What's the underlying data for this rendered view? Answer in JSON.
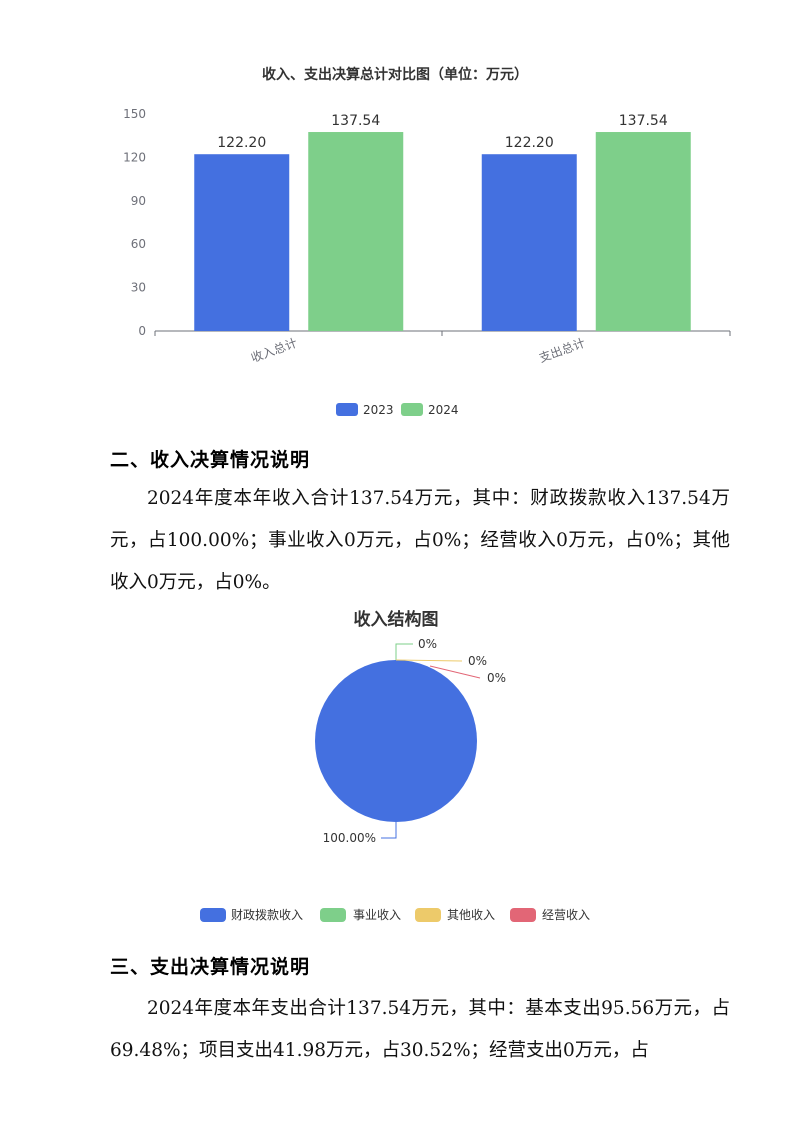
{
  "chart_data": [
    {
      "type": "bar",
      "title": "收入、支出决算总计对比图（单位：万元）",
      "categories": [
        "收入总计",
        "支出总计"
      ],
      "series": [
        {
          "name": "2023",
          "values": [
            122.2,
            122.2
          ],
          "color": "#4470E0"
        },
        {
          "name": "2024",
          "values": [
            137.54,
            137.54
          ],
          "color": "#7ECF8A"
        }
      ],
      "data_labels": [
        [
          "122.20",
          "122.20"
        ],
        [
          "137.54",
          "137.54"
        ]
      ],
      "yticks": [
        "0",
        "30",
        "60",
        "90",
        "120",
        "150"
      ],
      "ylim": [
        0,
        150
      ],
      "legend_position": "bottom",
      "grid": false
    },
    {
      "type": "pie",
      "title": "收入结构图",
      "slices": [
        {
          "name": "财政拨款收入",
          "value": 100.0,
          "label": "100.00%",
          "color": "#4470E0"
        },
        {
          "name": "事业收入",
          "value": 0,
          "label": "0%",
          "color": "#7ECF8A"
        },
        {
          "name": "其他收入",
          "value": 0,
          "label": "0%",
          "color": "#EDCA6A"
        },
        {
          "name": "经营收入",
          "value": 0,
          "label": "0%",
          "color": "#E26676"
        }
      ],
      "legend_position": "bottom"
    }
  ],
  "section2": {
    "heading": "二、收入决算情况说明",
    "text": "2024年度本年收入合计137.54万元，其中：财政拨款收入137.54万元，占100.00%；事业收入0万元，占0%；经营收入0万元，占0%；其他收入0万元，占0%。"
  },
  "section3": {
    "heading": "三、支出决算情况说明",
    "text": "2024年度本年支出合计137.54万元，其中：基本支出95.56万元，占69.48%；项目支出41.98万元，占30.52%；经营支出0万元，占"
  }
}
